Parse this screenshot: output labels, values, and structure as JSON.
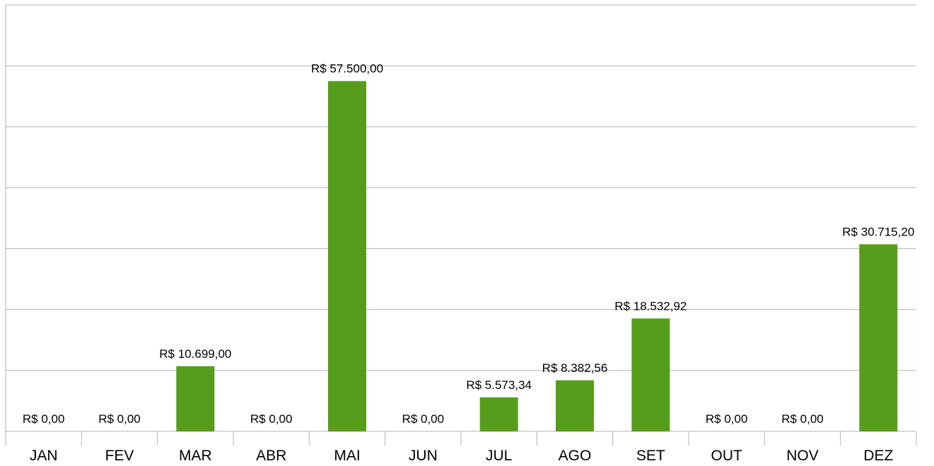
{
  "chart_data": {
    "type": "bar",
    "categories": [
      "JAN",
      "FEV",
      "MAR",
      "ABR",
      "MAI",
      "JUN",
      "JUL",
      "AGO",
      "SET",
      "OUT",
      "NOV",
      "DEZ"
    ],
    "values": [
      0,
      0,
      10699,
      0,
      57500,
      0,
      5573.34,
      8382.56,
      18532.92,
      0,
      0,
      30715.2
    ],
    "value_labels": [
      "R$ 0,00",
      "R$ 0,00",
      "R$ 10.699,00",
      "R$ 0,00",
      "R$ 57.500,00",
      "R$ 0,00",
      "R$ 5.573,34",
      "R$ 8.382,56",
      "R$ 18.532,92",
      "R$ 0,00",
      "R$ 0,00",
      "R$ 30.715,20"
    ],
    "color": "#579d1c",
    "ylim": [
      0,
      70000
    ],
    "yticks": [
      0,
      10000,
      20000,
      30000,
      40000,
      50000,
      60000,
      70000
    ],
    "grid": true
  }
}
